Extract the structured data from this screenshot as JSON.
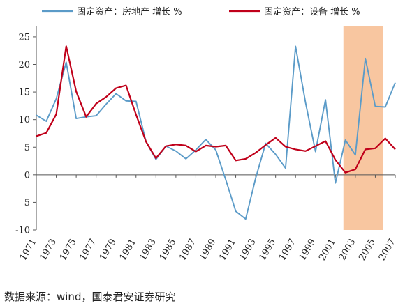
{
  "chart_data": {
    "type": "line",
    "title": "",
    "xlabel": "",
    "ylabel": "",
    "x": [
      1971,
      1972,
      1973,
      1974,
      1975,
      1976,
      1977,
      1978,
      1979,
      1980,
      1981,
      1982,
      1983,
      1984,
      1985,
      1986,
      1987,
      1988,
      1989,
      1990,
      1991,
      1992,
      1993,
      1994,
      1995,
      1996,
      1997,
      1998,
      1999,
      2000,
      2001,
      2002,
      2003,
      2004,
      2005,
      2006,
      2007
    ],
    "xticks": [
      "1971",
      "1973",
      "1975",
      "1977",
      "1979",
      "1981",
      "1983",
      "1985",
      "1987",
      "1989",
      "1991",
      "1993",
      "1995",
      "1997",
      "1999",
      "2001",
      "2003",
      "2005",
      "2007"
    ],
    "yticks": [
      "-10",
      "-5",
      "0",
      "5",
      "10",
      "15",
      "20",
      "25"
    ],
    "ylim": [
      -10,
      26
    ],
    "xlim": [
      1971,
      2007
    ],
    "series": [
      {
        "name": "固定资产：房地产  增长 %",
        "color": "#5b9bc8",
        "values": [
          10.8,
          9.7,
          13.8,
          20.4,
          10.2,
          10.5,
          10.7,
          12.8,
          14.7,
          13.4,
          13.3,
          6.0,
          2.8,
          5.2,
          4.3,
          2.9,
          4.5,
          6.4,
          4.5,
          -0.9,
          -6.6,
          -8.0,
          -0.6,
          5.7,
          3.7,
          1.2,
          23.3,
          13.1,
          4.2,
          13.6,
          -1.5,
          6.3,
          3.6,
          21.1,
          12.4,
          12.3,
          16.7
        ]
      },
      {
        "name": "固定资产：设备  增长 %",
        "color": "#c0001a",
        "values": [
          7.0,
          7.6,
          11.0,
          23.3,
          15.1,
          10.5,
          12.9,
          14.1,
          15.7,
          16.2,
          10.9,
          6.0,
          3.0,
          5.2,
          5.5,
          5.3,
          4.2,
          5.3,
          5.1,
          5.3,
          2.6,
          2.9,
          4.0,
          5.4,
          6.7,
          5.1,
          4.6,
          4.3,
          5.2,
          6.1,
          2.7,
          0.4,
          1.0,
          4.6,
          4.8,
          6.6,
          4.6
        ]
      }
    ],
    "highlight": {
      "from": 2001.8,
      "to": 2005.8,
      "color": "#f8c6a0"
    },
    "grid": false,
    "legend_position": "top"
  },
  "source_text": "数据来源：wind，国泰君安证券研究"
}
